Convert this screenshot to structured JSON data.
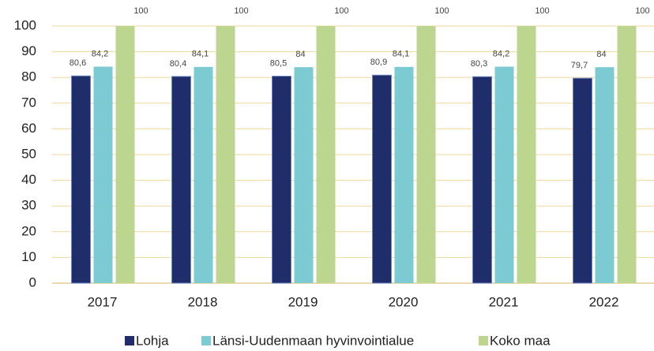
{
  "chart_data": {
    "type": "bar",
    "categories": [
      "2017",
      "2018",
      "2019",
      "2020",
      "2021",
      "2022"
    ],
    "series": [
      {
        "name": "Lohja",
        "color": "#1f2d6b",
        "values": [
          80.6,
          80.4,
          80.5,
          80.9,
          80.3,
          79.7
        ],
        "value_labels": [
          "80,6",
          "80,4",
          "80,5",
          "80,9",
          "80,3",
          "79,7"
        ]
      },
      {
        "name": "Länsi-Uudenmaan hyvinvointialue",
        "color": "#7ccbd3",
        "values": [
          84.2,
          84.1,
          84,
          84.1,
          84.2,
          84
        ],
        "value_labels": [
          "84,2",
          "84,1",
          "84",
          "84,1",
          "84,2",
          "84"
        ]
      },
      {
        "name": "Koko maa",
        "color": "#bcd68f",
        "values": [
          100,
          100,
          100,
          100,
          100,
          100
        ]
      }
    ],
    "ylim": [
      0,
      100
    ],
    "yticks": [
      0,
      10,
      20,
      30,
      40,
      50,
      60,
      70,
      80,
      90,
      100
    ],
    "grid": true,
    "legend": "bottom"
  }
}
